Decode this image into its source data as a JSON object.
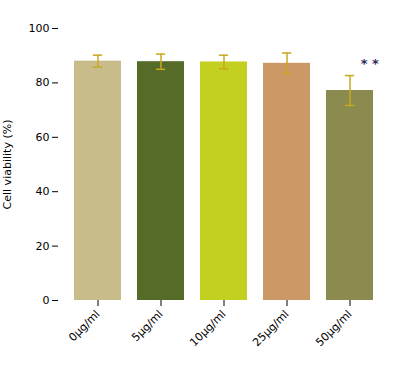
{
  "chart_data": {
    "type": "bar",
    "categories": [
      "0μg/ml",
      "5μg/ml",
      "10μg/ml",
      "25μg/ml",
      "50μg/ml"
    ],
    "values": [
      88.0,
      87.8,
      87.7,
      87.2,
      77.2
    ],
    "errors": [
      2.2,
      2.8,
      2.5,
      3.8,
      5.5
    ],
    "colors": [
      "#C8BC8A",
      "#566B28",
      "#C4D020",
      "#CC9966",
      "#8B8B50"
    ],
    "error_color": "#C8A820",
    "ylabel": "Cell viability (%)",
    "ylim": [
      0,
      100
    ],
    "yticks": [
      0,
      20,
      40,
      60,
      80,
      100
    ],
    "annotations": [
      {
        "text": "* *",
        "category": "50μg/ml",
        "color": "#2C2C5A"
      }
    ]
  }
}
